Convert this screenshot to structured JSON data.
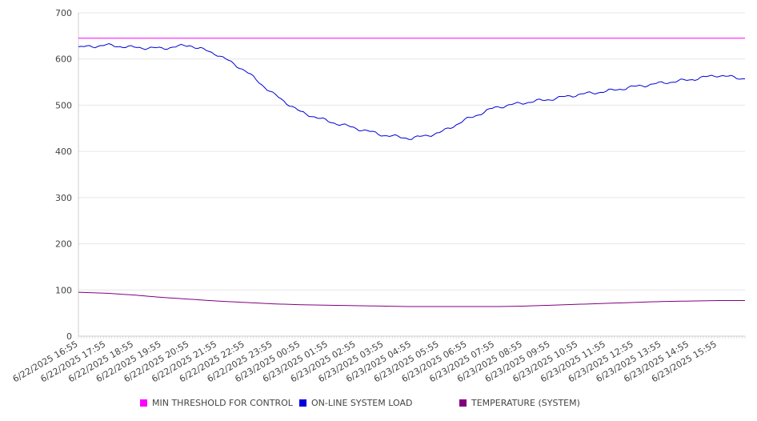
{
  "chart_data": {
    "type": "line",
    "title": "",
    "xlabel": "",
    "ylabel": "",
    "ylim": [
      0,
      700
    ],
    "y_ticks": [
      0,
      100,
      200,
      300,
      400,
      500,
      600,
      700
    ],
    "x_tick_labels": [
      "6/22/2025 16:55",
      "6/22/2025 17:55",
      "6/22/2025 18:55",
      "6/22/2025 19:55",
      "6/22/2025 20:55",
      "6/22/2025 21:55",
      "6/22/2025 22:55",
      "6/22/2025 23:55",
      "6/23/2025 00:55",
      "6/23/2025 01:55",
      "6/23/2025 02:55",
      "6/23/2025 03:55",
      "6/23/2025 04:55",
      "6/23/2025 05:55",
      "6/23/2025 06:55",
      "6/23/2025 07:55",
      "6/23/2025 08:55",
      "6/23/2025 09:55",
      "6/23/2025 10:55",
      "6/23/2025 11:55",
      "6/23/2025 12:55",
      "6/23/2025 13:55",
      "6/23/2025 14:55",
      "6/23/2025 15:55"
    ],
    "x": [
      "6/22/2025 16:55",
      "6/22/2025 17:55",
      "6/22/2025 18:55",
      "6/22/2025 19:55",
      "6/22/2025 20:55",
      "6/22/2025 21:55",
      "6/22/2025 22:55",
      "6/22/2025 23:55",
      "6/23/2025 00:55",
      "6/23/2025 01:55",
      "6/23/2025 02:55",
      "6/23/2025 03:55",
      "6/23/2025 04:55",
      "6/23/2025 05:55",
      "6/23/2025 06:55",
      "6/23/2025 07:55",
      "6/23/2025 08:55",
      "6/23/2025 09:55",
      "6/23/2025 10:55",
      "6/23/2025 11:55",
      "6/23/2025 12:55",
      "6/23/2025 13:55",
      "6/23/2025 14:55",
      "6/23/2025 15:55",
      "6/23/2025 16:55"
    ],
    "grid": true,
    "legend_position": "bottom",
    "series": [
      {
        "name": "MIN THRESHOLD FOR CONTROL",
        "color": "#ff00ff",
        "values": [
          645,
          645,
          645,
          645,
          645,
          645,
          645,
          645,
          645,
          645,
          645,
          645,
          645,
          645,
          645,
          645,
          645,
          645,
          645,
          645,
          645,
          645,
          645,
          645,
          645
        ]
      },
      {
        "name": "ON-LINE SYSTEM LOAD",
        "color": "#0000dd",
        "values": [
          625,
          630,
          625,
          623,
          630,
          610,
          575,
          525,
          485,
          465,
          450,
          435,
          428,
          440,
          470,
          495,
          505,
          513,
          523,
          530,
          540,
          548,
          555,
          565,
          557
        ]
      },
      {
        "name": "TEMPERATURE (SYSTEM)",
        "color": "#800080",
        "values": [
          95,
          93,
          89,
          84,
          80,
          76,
          73,
          70,
          68,
          67,
          66,
          65,
          64,
          64,
          64,
          64,
          65,
          67,
          69,
          71,
          73,
          75,
          76,
          77,
          77
        ]
      }
    ]
  }
}
